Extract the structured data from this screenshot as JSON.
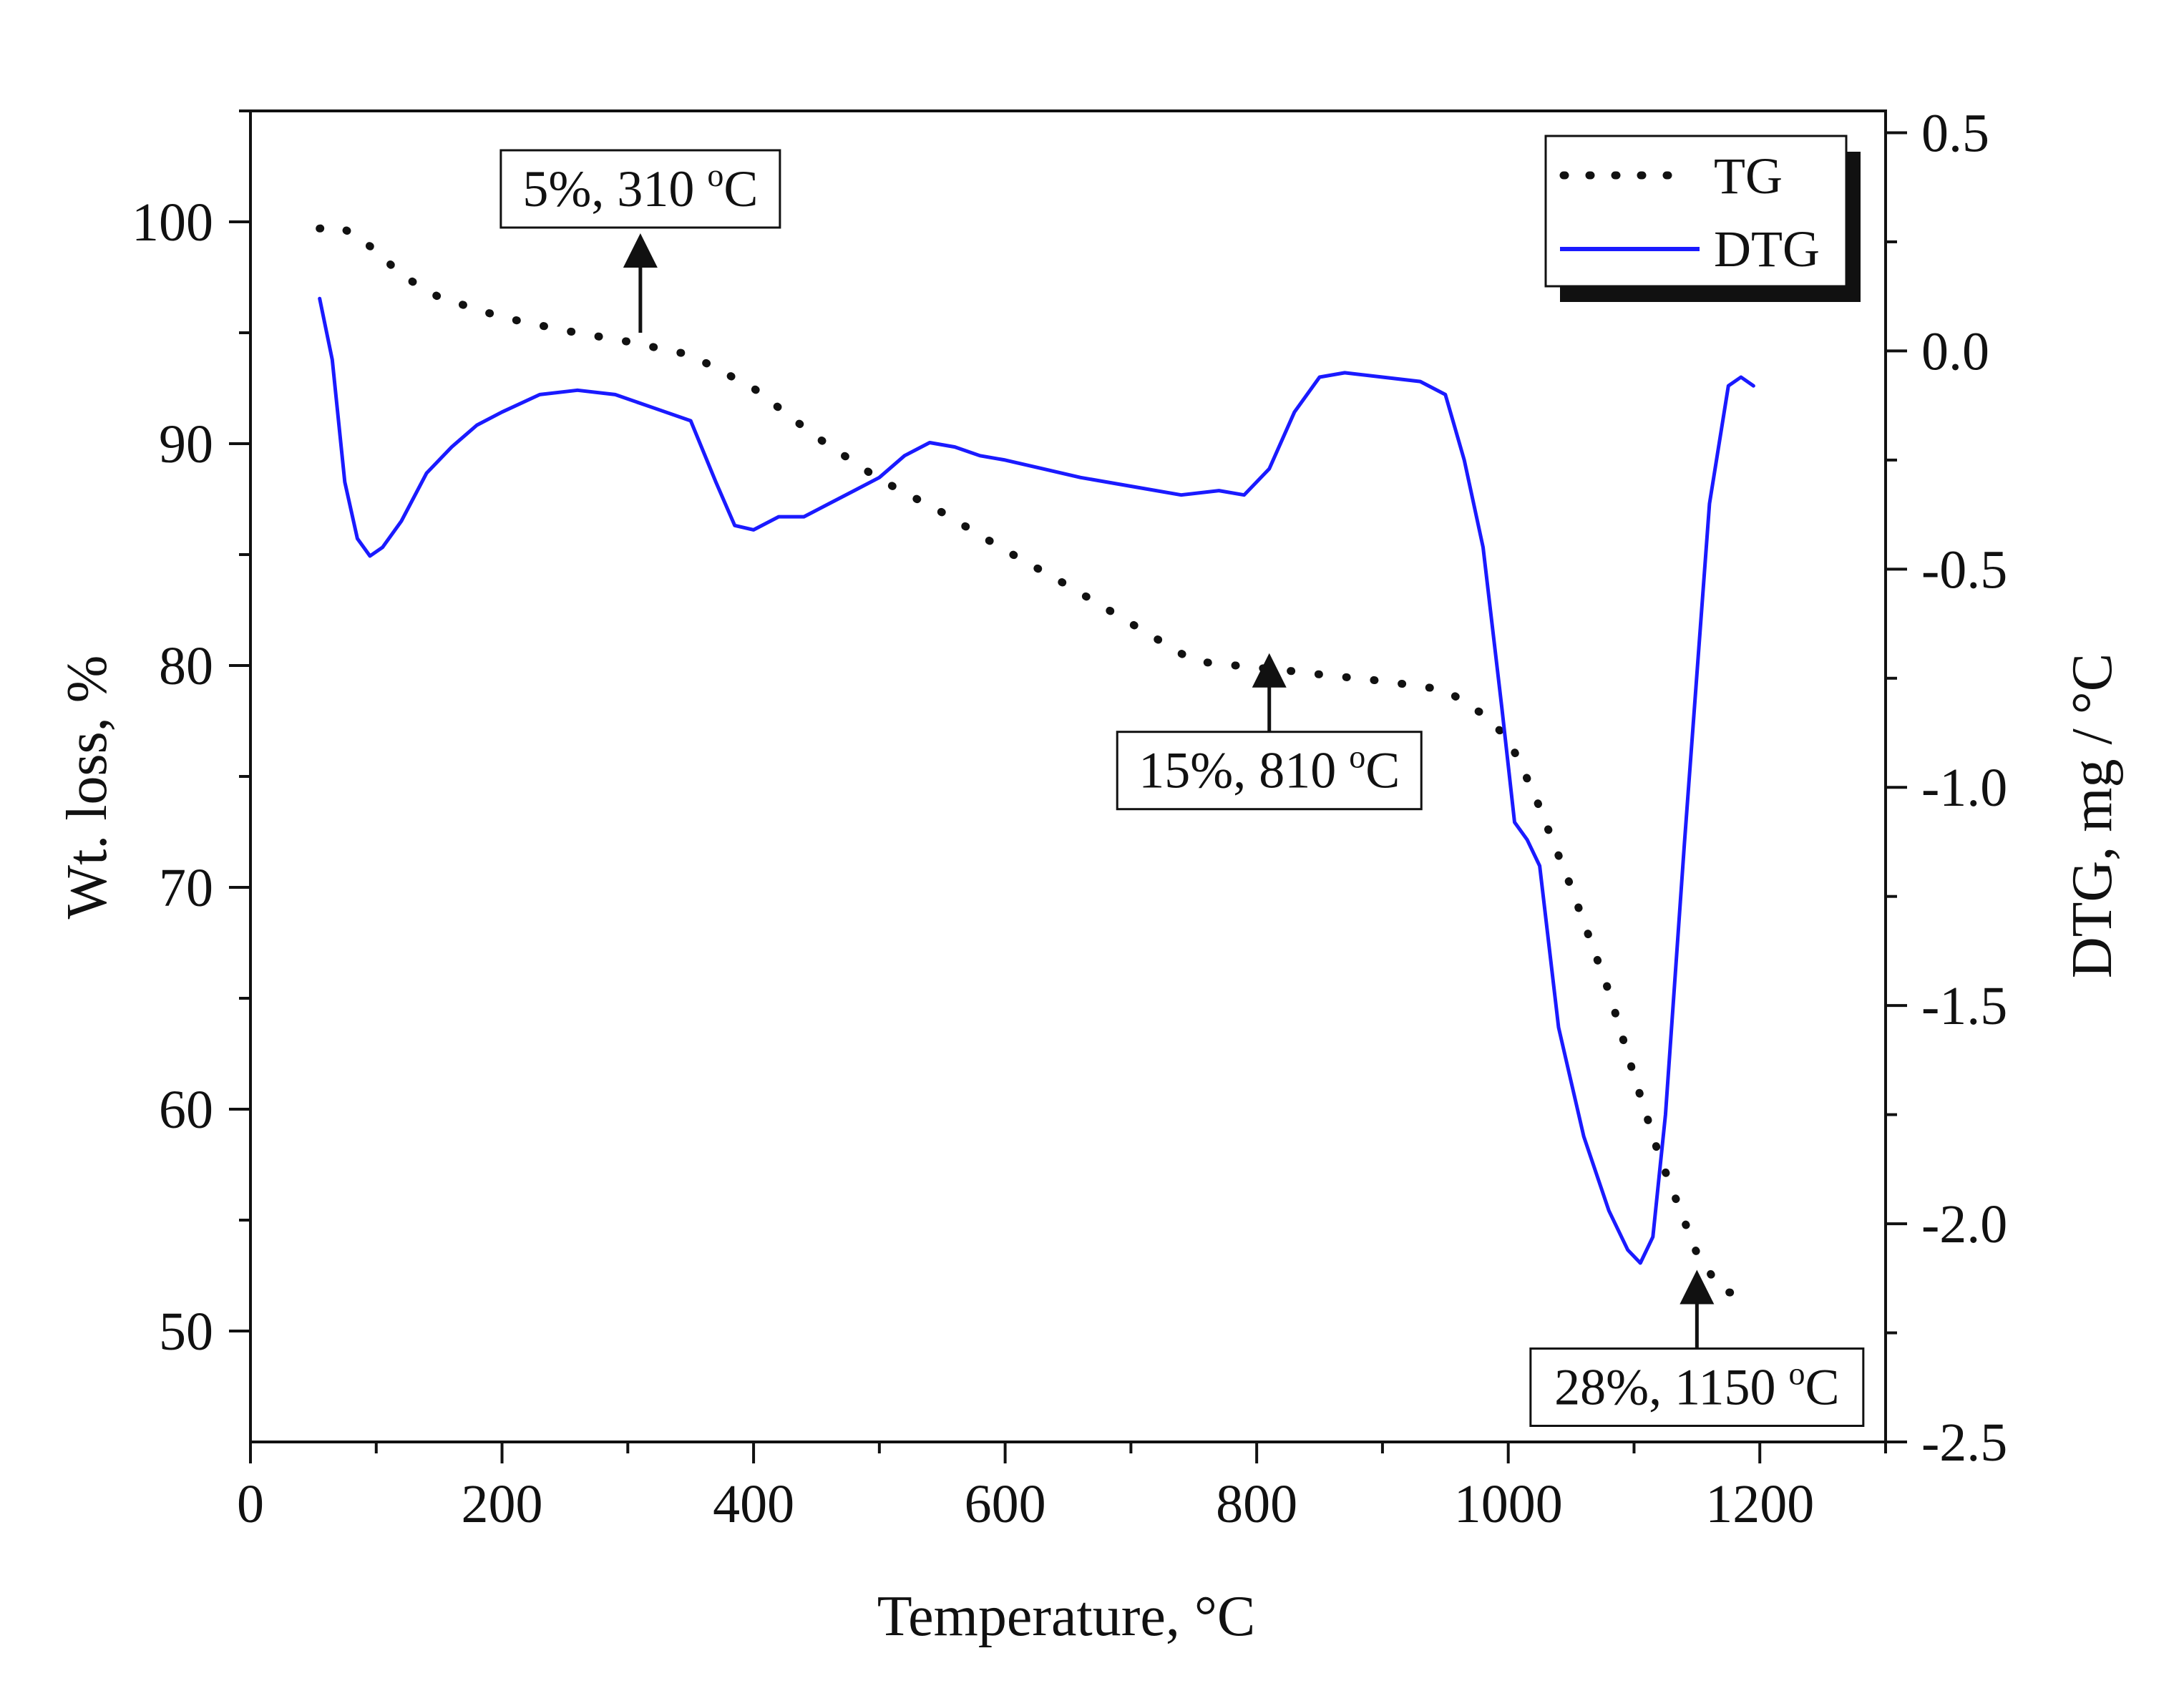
{
  "chart_data": {
    "type": "line",
    "title": "",
    "xlabel": "Temperature, °C",
    "ylabel_left": "Wt. loss, %",
    "ylabel_right": "DTG, mg / °C",
    "xlim": [
      0,
      1300
    ],
    "ylim_left": [
      45,
      105
    ],
    "ylim_right": [
      -2.5,
      0.55
    ],
    "x_ticks": [
      0,
      200,
      400,
      600,
      800,
      1000,
      1200
    ],
    "x_tick_labels": [
      "0",
      "200",
      "400",
      "600",
      "800",
      "1000",
      "1200"
    ],
    "y_left_ticks": [
      50,
      60,
      70,
      80,
      90,
      100
    ],
    "y_left_tick_labels": [
      "50",
      "60",
      "70",
      "80",
      "90",
      "100"
    ],
    "y_right_ticks": [
      -2.5,
      -2.0,
      -1.5,
      -1.0,
      -0.5,
      0.0,
      0.5
    ],
    "y_right_tick_labels": [
      "-2.5",
      "-2.0",
      "-1.5",
      "-1.0",
      "-0.5",
      "0.0",
      "0.5"
    ],
    "legend": {
      "position": "top-right",
      "entries": [
        "TG",
        "DTG"
      ]
    },
    "colors": {
      "TG": "#111111",
      "DTG": "#1a1aff",
      "frame": "#111111"
    },
    "series": [
      {
        "name": "TG",
        "axis": "left",
        "style": "dotted",
        "x": [
          55,
          70,
          80,
          100,
          120,
          150,
          200,
          250,
          300,
          350,
          400,
          450,
          500,
          550,
          600,
          650,
          700,
          750,
          800,
          820,
          850,
          900,
          950,
          980,
          1000,
          1020,
          1050,
          1080,
          1100,
          1120,
          1150,
          1170,
          1190
        ],
        "y": [
          99.7,
          99.8,
          99.5,
          98.7,
          97.6,
          96.6,
          95.7,
          95.1,
          94.6,
          94.0,
          92.5,
          90.3,
          88.4,
          86.9,
          85.2,
          83.6,
          81.9,
          80.2,
          79.9,
          79.8,
          79.6,
          79.3,
          78.9,
          77.8,
          76.7,
          74.3,
          70.0,
          65.3,
          61.5,
          57.9,
          53.5,
          51.8,
          51.6
        ]
      },
      {
        "name": "DTG",
        "axis": "right",
        "style": "solid",
        "x": [
          55,
          65,
          75,
          85,
          95,
          105,
          120,
          140,
          160,
          180,
          200,
          230,
          260,
          290,
          320,
          350,
          370,
          385,
          400,
          420,
          440,
          460,
          480,
          500,
          520,
          540,
          560,
          580,
          600,
          630,
          660,
          700,
          740,
          770,
          790,
          810,
          830,
          850,
          870,
          900,
          930,
          950,
          965,
          980,
          995,
          1005,
          1015,
          1025,
          1040,
          1060,
          1080,
          1095,
          1105,
          1115,
          1125,
          1140,
          1160,
          1175,
          1185,
          1195
        ],
        "y": [
          0.12,
          -0.02,
          -0.3,
          -0.43,
          -0.47,
          -0.45,
          -0.39,
          -0.28,
          -0.22,
          -0.17,
          -0.14,
          -0.1,
          -0.09,
          -0.1,
          -0.13,
          -0.16,
          -0.3,
          -0.4,
          -0.41,
          -0.38,
          -0.38,
          -0.35,
          -0.32,
          -0.29,
          -0.24,
          -0.21,
          -0.22,
          -0.24,
          -0.25,
          -0.27,
          -0.29,
          -0.31,
          -0.33,
          -0.32,
          -0.33,
          -0.27,
          -0.14,
          -0.06,
          -0.05,
          -0.06,
          -0.07,
          -0.1,
          -0.25,
          -0.45,
          -0.82,
          -1.08,
          -1.12,
          -1.18,
          -1.55,
          -1.8,
          -1.97,
          -2.06,
          -2.09,
          -2.03,
          -1.75,
          -1.13,
          -0.35,
          -0.08,
          -0.06,
          -0.08
        ]
      }
    ],
    "annotations": [
      {
        "text": "5%, 310 ",
        "sup": "o",
        "unit": "C",
        "x": 310,
        "y": 95.0,
        "box_anchor": "above"
      },
      {
        "text": "15%, 810 ",
        "sup": "o",
        "unit": "C",
        "x": 810,
        "y": 80.3,
        "box_anchor": "below"
      },
      {
        "text": "28%, 1150 ",
        "sup": "o",
        "unit": "C",
        "x": 1150,
        "y": 52.5,
        "box_anchor": "below"
      }
    ]
  }
}
